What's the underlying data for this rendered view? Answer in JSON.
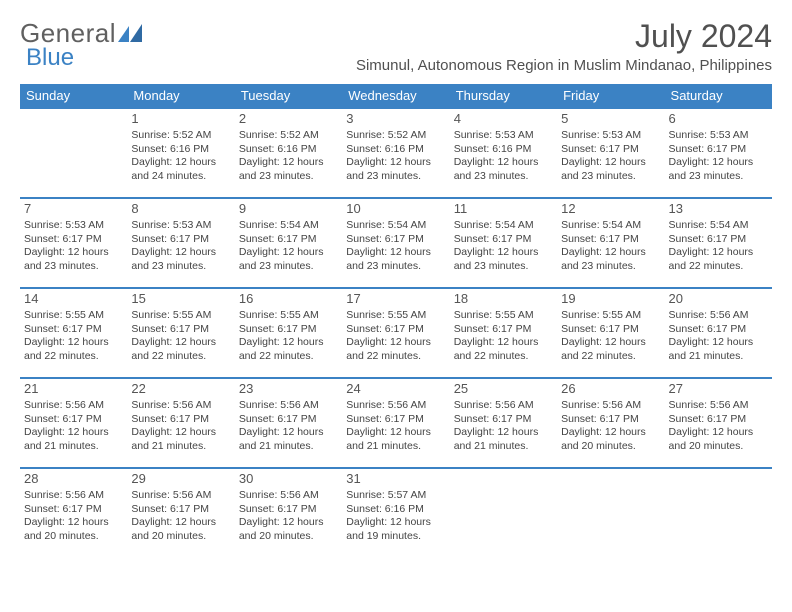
{
  "brand": {
    "part1": "General",
    "part2": "Blue"
  },
  "title": "July 2024",
  "location": "Simunul, Autonomous Region in Muslim Mindanao, Philippines",
  "colors": {
    "header_bg": "#3b82c4",
    "header_text": "#ffffff",
    "border": "#3b82c4",
    "text": "#444444",
    "title_text": "#505050",
    "logo_gray": "#606060",
    "logo_blue": "#3b82c4",
    "background": "#ffffff"
  },
  "weekdays": [
    "Sunday",
    "Monday",
    "Tuesday",
    "Wednesday",
    "Thursday",
    "Friday",
    "Saturday"
  ],
  "weeks": [
    [
      null,
      {
        "d": "1",
        "sr": "5:52 AM",
        "ss": "6:16 PM",
        "dl": "12 hours and 24 minutes."
      },
      {
        "d": "2",
        "sr": "5:52 AM",
        "ss": "6:16 PM",
        "dl": "12 hours and 23 minutes."
      },
      {
        "d": "3",
        "sr": "5:52 AM",
        "ss": "6:16 PM",
        "dl": "12 hours and 23 minutes."
      },
      {
        "d": "4",
        "sr": "5:53 AM",
        "ss": "6:16 PM",
        "dl": "12 hours and 23 minutes."
      },
      {
        "d": "5",
        "sr": "5:53 AM",
        "ss": "6:17 PM",
        "dl": "12 hours and 23 minutes."
      },
      {
        "d": "6",
        "sr": "5:53 AM",
        "ss": "6:17 PM",
        "dl": "12 hours and 23 minutes."
      }
    ],
    [
      {
        "d": "7",
        "sr": "5:53 AM",
        "ss": "6:17 PM",
        "dl": "12 hours and 23 minutes."
      },
      {
        "d": "8",
        "sr": "5:53 AM",
        "ss": "6:17 PM",
        "dl": "12 hours and 23 minutes."
      },
      {
        "d": "9",
        "sr": "5:54 AM",
        "ss": "6:17 PM",
        "dl": "12 hours and 23 minutes."
      },
      {
        "d": "10",
        "sr": "5:54 AM",
        "ss": "6:17 PM",
        "dl": "12 hours and 23 minutes."
      },
      {
        "d": "11",
        "sr": "5:54 AM",
        "ss": "6:17 PM",
        "dl": "12 hours and 23 minutes."
      },
      {
        "d": "12",
        "sr": "5:54 AM",
        "ss": "6:17 PM",
        "dl": "12 hours and 23 minutes."
      },
      {
        "d": "13",
        "sr": "5:54 AM",
        "ss": "6:17 PM",
        "dl": "12 hours and 22 minutes."
      }
    ],
    [
      {
        "d": "14",
        "sr": "5:55 AM",
        "ss": "6:17 PM",
        "dl": "12 hours and 22 minutes."
      },
      {
        "d": "15",
        "sr": "5:55 AM",
        "ss": "6:17 PM",
        "dl": "12 hours and 22 minutes."
      },
      {
        "d": "16",
        "sr": "5:55 AM",
        "ss": "6:17 PM",
        "dl": "12 hours and 22 minutes."
      },
      {
        "d": "17",
        "sr": "5:55 AM",
        "ss": "6:17 PM",
        "dl": "12 hours and 22 minutes."
      },
      {
        "d": "18",
        "sr": "5:55 AM",
        "ss": "6:17 PM",
        "dl": "12 hours and 22 minutes."
      },
      {
        "d": "19",
        "sr": "5:55 AM",
        "ss": "6:17 PM",
        "dl": "12 hours and 22 minutes."
      },
      {
        "d": "20",
        "sr": "5:56 AM",
        "ss": "6:17 PM",
        "dl": "12 hours and 21 minutes."
      }
    ],
    [
      {
        "d": "21",
        "sr": "5:56 AM",
        "ss": "6:17 PM",
        "dl": "12 hours and 21 minutes."
      },
      {
        "d": "22",
        "sr": "5:56 AM",
        "ss": "6:17 PM",
        "dl": "12 hours and 21 minutes."
      },
      {
        "d": "23",
        "sr": "5:56 AM",
        "ss": "6:17 PM",
        "dl": "12 hours and 21 minutes."
      },
      {
        "d": "24",
        "sr": "5:56 AM",
        "ss": "6:17 PM",
        "dl": "12 hours and 21 minutes."
      },
      {
        "d": "25",
        "sr": "5:56 AM",
        "ss": "6:17 PM",
        "dl": "12 hours and 21 minutes."
      },
      {
        "d": "26",
        "sr": "5:56 AM",
        "ss": "6:17 PM",
        "dl": "12 hours and 20 minutes."
      },
      {
        "d": "27",
        "sr": "5:56 AM",
        "ss": "6:17 PM",
        "dl": "12 hours and 20 minutes."
      }
    ],
    [
      {
        "d": "28",
        "sr": "5:56 AM",
        "ss": "6:17 PM",
        "dl": "12 hours and 20 minutes."
      },
      {
        "d": "29",
        "sr": "5:56 AM",
        "ss": "6:17 PM",
        "dl": "12 hours and 20 minutes."
      },
      {
        "d": "30",
        "sr": "5:56 AM",
        "ss": "6:17 PM",
        "dl": "12 hours and 20 minutes."
      },
      {
        "d": "31",
        "sr": "5:57 AM",
        "ss": "6:16 PM",
        "dl": "12 hours and 19 minutes."
      },
      null,
      null,
      null
    ]
  ],
  "labels": {
    "sunrise": "Sunrise:",
    "sunset": "Sunset:",
    "daylight": "Daylight:"
  }
}
